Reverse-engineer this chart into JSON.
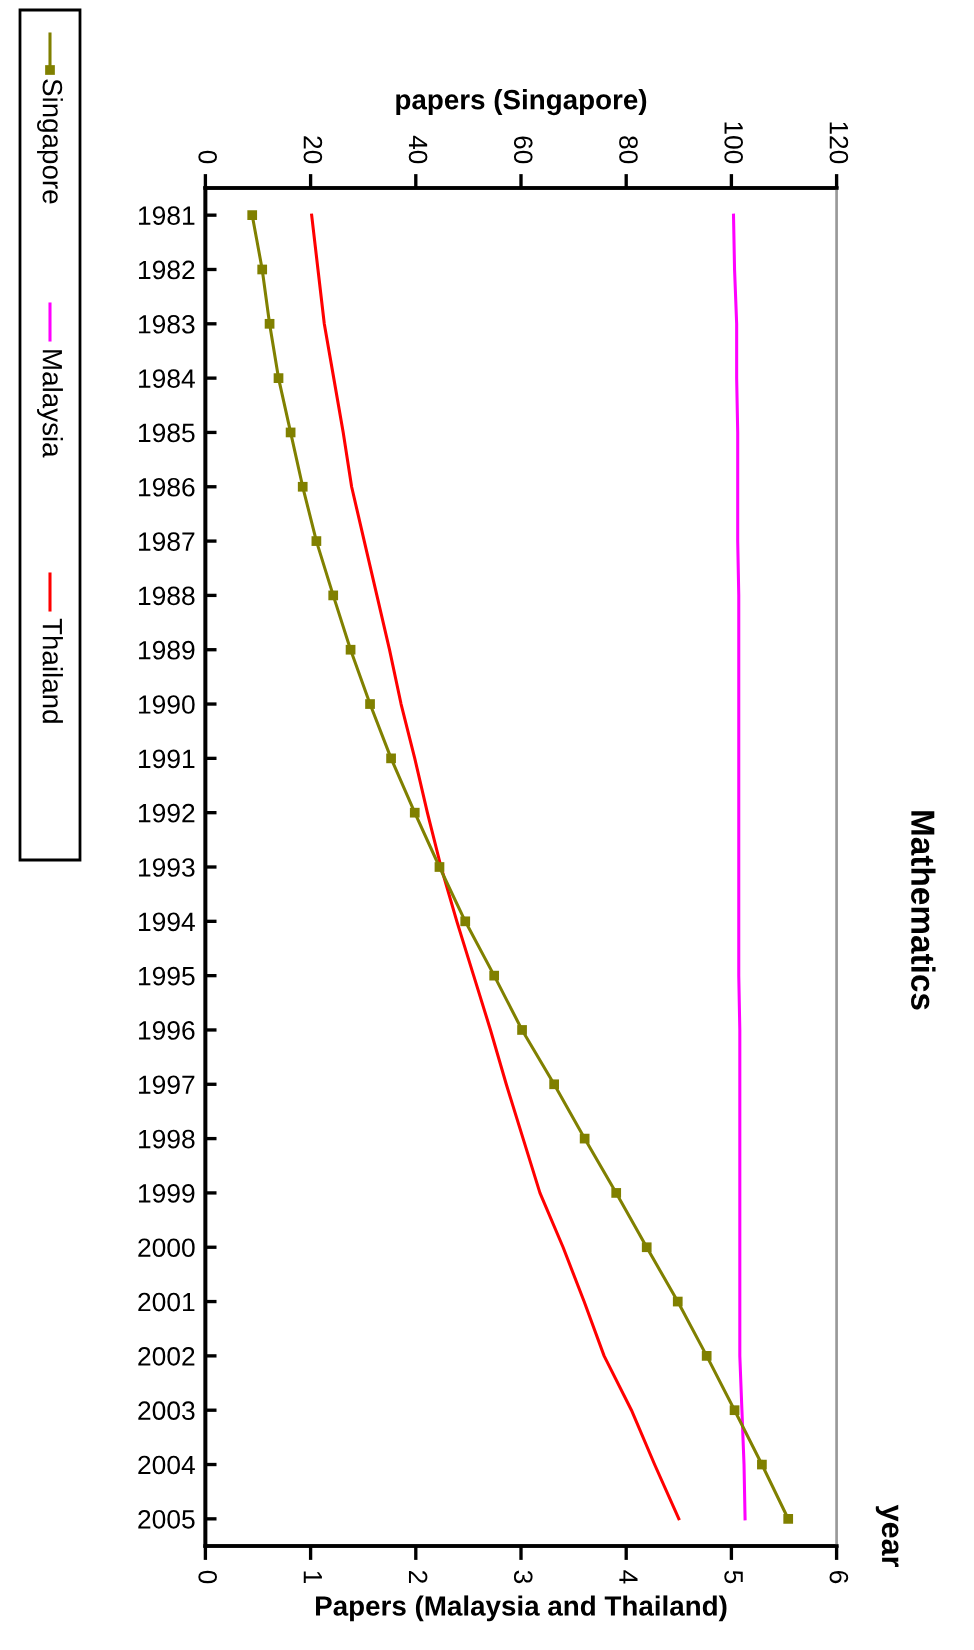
{
  "chart_data": {
    "type": "line",
    "orientation": "horizontal",
    "title": "Mathematics",
    "ylabel": "year",
    "xlabel": "Papers (Malaysia and Thailand)",
    "x2label": "papers (Singapore)",
    "categories": [
      "1981",
      "1982",
      "1983",
      "1984",
      "1985",
      "1986",
      "1987",
      "1988",
      "1989",
      "1990",
      "1991",
      "1992",
      "1993",
      "1994",
      "1995",
      "1996",
      "1997",
      "1998",
      "1999",
      "2000",
      "2001",
      "2002",
      "2003",
      "2004",
      "2005"
    ],
    "series": [
      {
        "name": "Singapore",
        "color": "#808000",
        "axis": "x2",
        "marker": "square",
        "values": [
          8.9,
          10.8,
          12.2,
          13.9,
          16.2,
          18.5,
          21.1,
          24.3,
          27.6,
          31.3,
          35.3,
          39.8,
          44.5,
          49.4,
          54.9,
          60.2,
          66.3,
          72.1,
          78.1,
          83.9,
          89.8,
          95.3,
          100.6,
          105.8,
          110.8
        ]
      },
      {
        "name": "Malaysia",
        "color": "#ff00ff",
        "values": [
          5.02,
          5.03,
          5.05,
          5.05,
          5.06,
          5.06,
          5.06,
          5.07,
          5.07,
          5.07,
          5.07,
          5.07,
          5.07,
          5.07,
          5.07,
          5.08,
          5.08,
          5.08,
          5.08,
          5.08,
          5.08,
          5.08,
          5.1,
          5.12,
          5.13
        ]
      },
      {
        "name": "Thailand",
        "color": "#ff0000",
        "values": [
          1.01,
          1.07,
          1.13,
          1.22,
          1.31,
          1.39,
          1.51,
          1.63,
          1.75,
          1.86,
          1.99,
          2.11,
          2.24,
          2.39,
          2.55,
          2.71,
          2.86,
          3.02,
          3.18,
          3.4,
          3.6,
          3.79,
          4.05,
          4.27,
          4.5
        ]
      }
    ],
    "xlim": [
      0,
      6
    ],
    "xticks": [
      0,
      1,
      2,
      3,
      4,
      5,
      6
    ],
    "x2lim": [
      0,
      120
    ],
    "x2ticks": [
      0,
      20,
      40,
      60,
      80,
      100,
      120
    ],
    "legend": "left",
    "grid": false
  }
}
